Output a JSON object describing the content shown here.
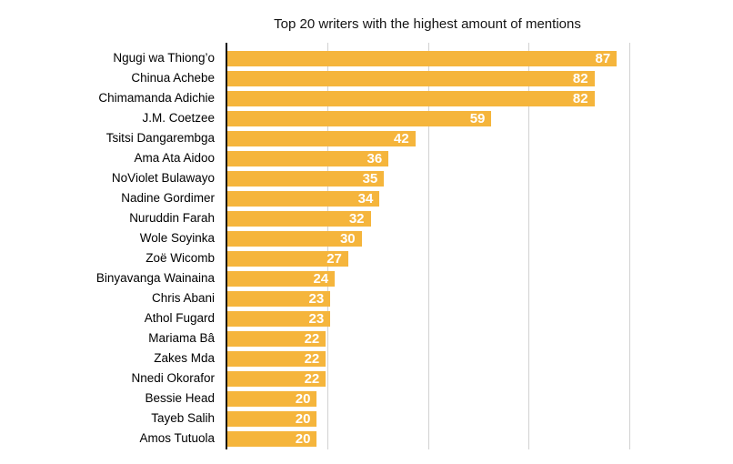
{
  "chart_data": {
    "type": "bar",
    "orientation": "horizontal",
    "title": "Top 20 writers with the highest amount of mentions",
    "categories": [
      "Ngugi wa Thiong’o",
      "Chinua Achebe",
      "Chimamanda Adichie",
      "J.M. Coetzee",
      "Tsitsi Dangarembga",
      "Ama Ata Aidoo",
      "NoViolet Bulawayo",
      "Nadine Gordimer",
      "Nuruddin Farah",
      "Wole Soyinka",
      "Zoë Wicomb",
      "Binyavanga Wainaina",
      "Chris Abani",
      "Athol Fugard",
      "Mariama Bâ",
      "Zakes Mda",
      "Nnedi Okorafor",
      "Bessie Head",
      "Tayeb Salih",
      "Amos Tutuola"
    ],
    "values": [
      87,
      82,
      82,
      59,
      42,
      36,
      35,
      34,
      32,
      30,
      27,
      24,
      23,
      23,
      22,
      22,
      22,
      20,
      20,
      20
    ],
    "xlabel": "",
    "ylabel": "",
    "xlim": [
      0,
      90
    ],
    "x_gridlines": [
      22.5,
      45,
      67.5,
      90
    ],
    "grid": true,
    "legend": false,
    "value_labels": "inside-end",
    "colors": {
      "bar": "#F5B53C",
      "value_label": "#FFFFFF",
      "axis_line": "#0B0B0B",
      "gridline": "#D1D1D1",
      "title_text": "#141414",
      "category_label": "#000000",
      "background": "#FFFFFF"
    }
  }
}
